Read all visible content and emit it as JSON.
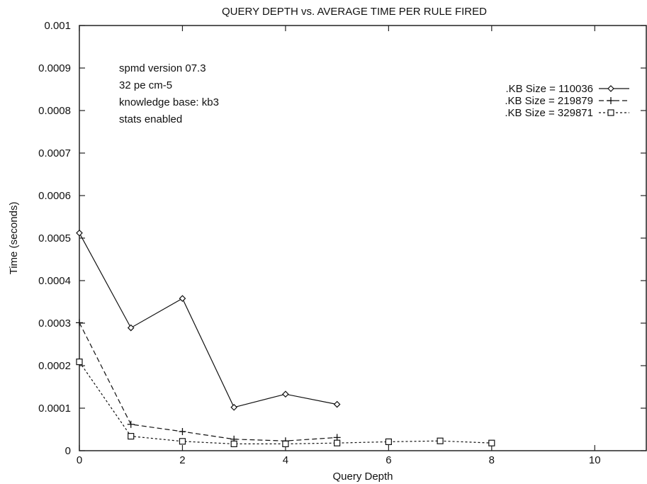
{
  "chart_data": {
    "type": "line",
    "title": "QUERY DEPTH vs. AVERAGE TIME PER RULE FIRED",
    "xlabel": "Query Depth",
    "ylabel": "Time (seconds)",
    "xlim": [
      0,
      11
    ],
    "ylim": [
      0,
      0.001
    ],
    "x_ticks": [
      "0",
      "2",
      "4",
      "6",
      "8",
      "10"
    ],
    "y_ticks": [
      "0",
      "0.0001",
      "0.0002",
      "0.0003",
      "0.0004",
      "0.0005",
      "0.0006",
      "0.0007",
      "0.0008",
      "0.0009",
      "0.001"
    ],
    "grid": false,
    "legend_position": "top-right",
    "annotation_lines": [
      "spmd version 07.3",
      "32 pe cm-5",
      "knowledge base: kb3",
      "stats enabled"
    ],
    "series": [
      {
        "name": ".KB Size = 110036",
        "marker": "diamond",
        "line": "solid",
        "x": [
          0,
          1,
          2,
          3,
          4,
          5
        ],
        "y": [
          0.000512,
          0.000289,
          0.000358,
          0.000102,
          0.000133,
          0.000109
        ]
      },
      {
        "name": ".KB Size = 219879",
        "marker": "plus",
        "line": "dashed",
        "x": [
          0,
          1,
          2,
          3,
          4,
          5
        ],
        "y": [
          0.000301,
          6.2e-05,
          4.5e-05,
          2.7e-05,
          2.3e-05,
          3.1e-05
        ]
      },
      {
        "name": ".KB Size = 329871",
        "marker": "square",
        "line": "dotted",
        "x": [
          0,
          1,
          2,
          3,
          4,
          5,
          6,
          7,
          8
        ],
        "y": [
          0.000209,
          3.4e-05,
          2.2e-05,
          1.6e-05,
          1.6e-05,
          1.8e-05,
          2.1e-05,
          2.3e-05,
          1.8e-05
        ]
      }
    ]
  }
}
